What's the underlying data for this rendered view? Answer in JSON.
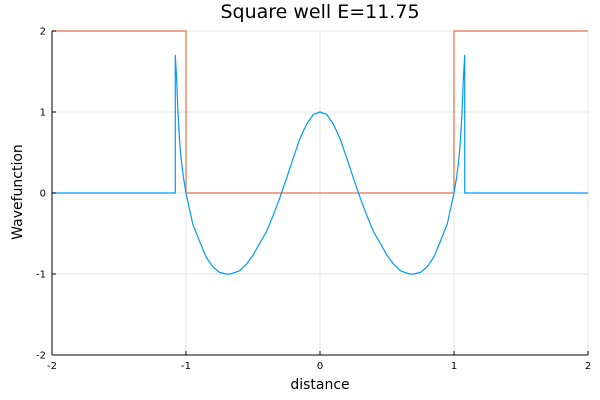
{
  "chart_data": {
    "type": "line",
    "title": "Square well E=11.75",
    "xlabel": "distance",
    "ylabel": "Wavefunction",
    "xlim": [
      -2,
      2
    ],
    "ylim": [
      -2,
      2
    ],
    "xticks": [
      "-2",
      "-1",
      "0",
      "1",
      "2"
    ],
    "yticks": [
      "-2",
      "-1",
      "0",
      "1",
      "2"
    ],
    "grid": true,
    "legend": false,
    "series": [
      {
        "color": "#e26f46",
        "x": [
          -2,
          -1,
          -1,
          1,
          1,
          2
        ],
        "y": [
          2,
          2,
          0,
          0,
          2,
          2
        ]
      },
      {
        "color": "#009af9",
        "x": [
          -2,
          -1.08,
          -1.08,
          -1.07,
          -1.06,
          -1.05,
          -1.04,
          -1.03,
          -1.02,
          -1.01,
          -1.0,
          -0.95,
          -0.9,
          -0.85,
          -0.8,
          -0.75,
          -0.7,
          -0.667,
          -0.6,
          -0.55,
          -0.5,
          -0.45,
          -0.4,
          -0.35,
          -0.3,
          -0.25,
          -0.2,
          -0.15,
          -0.1,
          -0.05,
          0,
          0.05,
          0.1,
          0.15,
          0.2,
          0.25,
          0.3,
          0.35,
          0.4,
          0.45,
          0.5,
          0.55,
          0.6,
          0.667,
          0.7,
          0.75,
          0.8,
          0.85,
          0.9,
          0.95,
          1.0,
          1.01,
          1.02,
          1.03,
          1.04,
          1.05,
          1.06,
          1.07,
          1.08,
          1.08,
          2
        ],
        "y": [
          0,
          0,
          1.7,
          1.42,
          1.0,
          0.7,
          0.48,
          0.33,
          0.2,
          0.1,
          0,
          -0.38,
          -0.59,
          -0.79,
          -0.91,
          -0.98,
          -1.0,
          -1.0,
          -0.96,
          -0.88,
          -0.77,
          -0.62,
          -0.48,
          -0.28,
          -0.06,
          0.18,
          0.43,
          0.67,
          0.85,
          0.97,
          1.0,
          0.97,
          0.85,
          0.67,
          0.43,
          0.18,
          -0.06,
          -0.28,
          -0.48,
          -0.62,
          -0.77,
          -0.88,
          -0.96,
          -1.0,
          -1.0,
          -0.98,
          -0.91,
          -0.79,
          -0.59,
          -0.38,
          0,
          0.1,
          0.2,
          0.33,
          0.48,
          0.7,
          1.0,
          1.42,
          1.7,
          0,
          0
        ]
      }
    ]
  }
}
